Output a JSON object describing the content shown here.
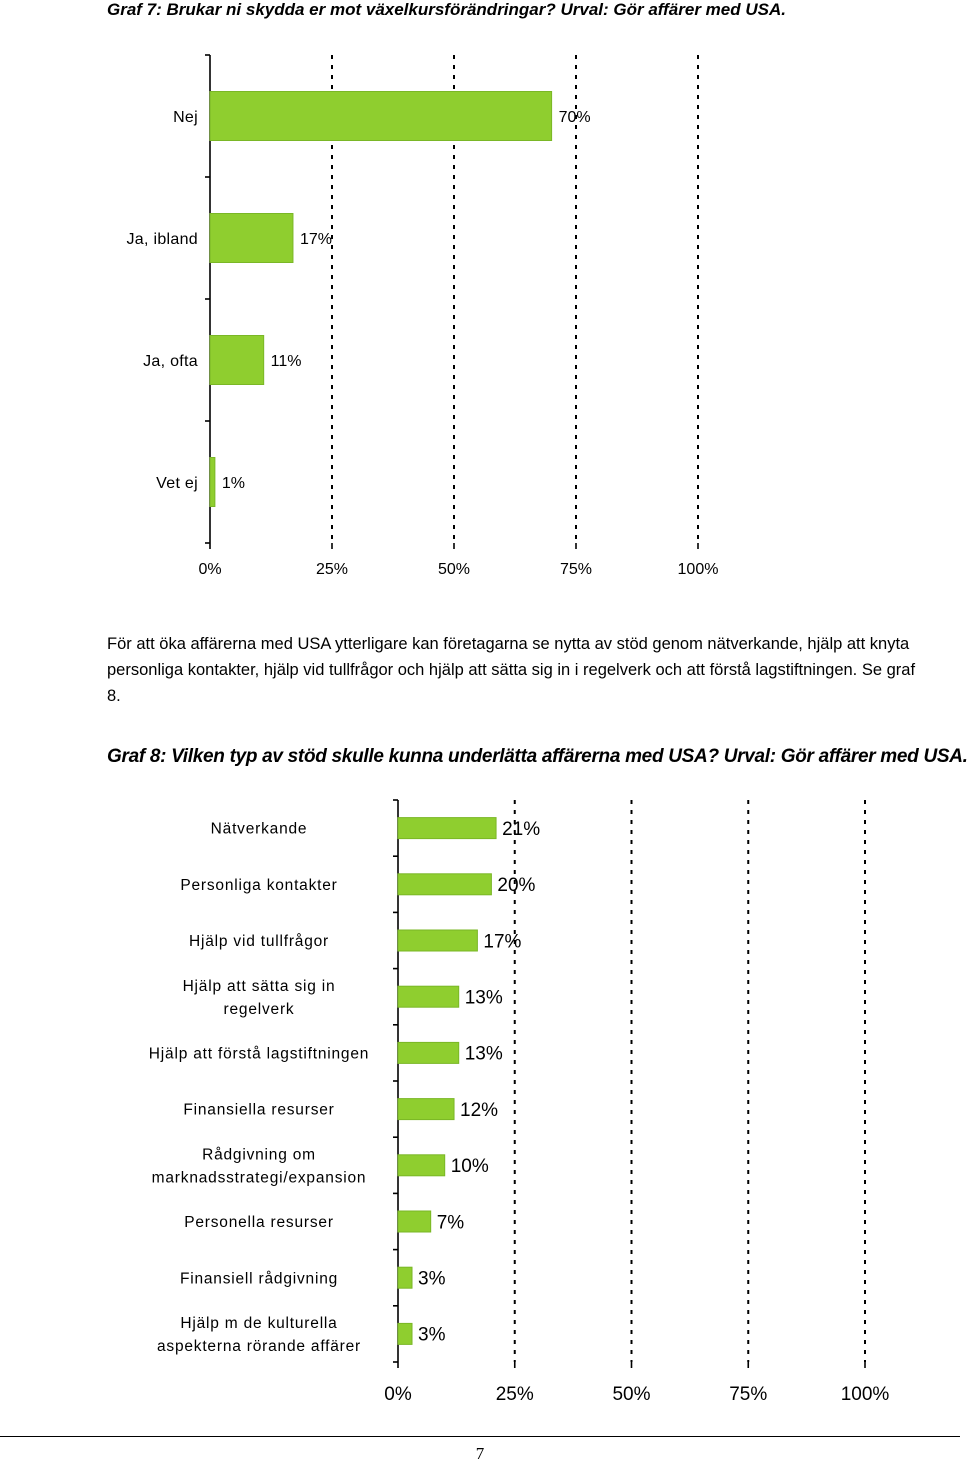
{
  "heading1": "Graf 7: Brukar ni skydda er mot växelkursförändringar? Urval: Gör affärer med USA.",
  "paragraph": "För att öka affärerna med USA ytterligare kan företagarna se nytta av stöd genom nätverkande, hjälp att knyta personliga kontakter, hjälp vid tullfrågor och hjälp att sätta sig in i regelverk och att förstå lagstiftningen. Se graf 8.",
  "heading2": "Graf 8: Vilken typ av stöd skulle kunna underlätta affärerna med USA? Urval: Gör affärer med USA.",
  "page_number": "7",
  "colors": {
    "bar": "#8fce2f",
    "bar_stroke": "#7ab726"
  },
  "chart_data": [
    {
      "type": "bar",
      "orientation": "horizontal",
      "title": "Graf 7: Brukar ni skydda er mot växelkursförändringar? Urval: Gör affärer med USA.",
      "categories": [
        "Nej",
        "Ja, ibland",
        "Ja, ofta",
        "Vet ej"
      ],
      "values": [
        70,
        17,
        11,
        1
      ],
      "value_labels": [
        "70%",
        "17%",
        "11%",
        "1%"
      ],
      "xlim": [
        0,
        100
      ],
      "xticks": [
        "0%",
        "25%",
        "50%",
        "75%",
        "100%"
      ],
      "grid": "dashed vertical"
    },
    {
      "type": "bar",
      "orientation": "horizontal",
      "title": "Graf 8: Vilken typ av stöd skulle kunna underlätta affärerna med USA? Urval: Gör affärer med USA.",
      "categories": [
        [
          "Nätverkande"
        ],
        [
          "Personliga kontakter"
        ],
        [
          "Hjälp vid tullfrågor"
        ],
        [
          "Hjälp att sätta sig in",
          "regelverk"
        ],
        [
          "Hjälp att förstå lagstiftningen"
        ],
        [
          "Finansiella resurser"
        ],
        [
          "Rådgivning om",
          "marknadsstrategi/expansion"
        ],
        [
          "Personella resurser"
        ],
        [
          "Finansiell rådgivning"
        ],
        [
          "Hjälp m de kulturella",
          "aspekterna rörande affärer"
        ]
      ],
      "values": [
        21,
        20,
        17,
        13,
        13,
        12,
        10,
        7,
        3,
        3
      ],
      "value_labels": [
        "21%",
        "20%",
        "17%",
        "13%",
        "13%",
        "12%",
        "10%",
        "7%",
        "3%",
        "3%"
      ],
      "xlim": [
        0,
        100
      ],
      "xticks": [
        "0%",
        "25%",
        "50%",
        "75%",
        "100%"
      ],
      "grid": "dashed vertical"
    }
  ]
}
